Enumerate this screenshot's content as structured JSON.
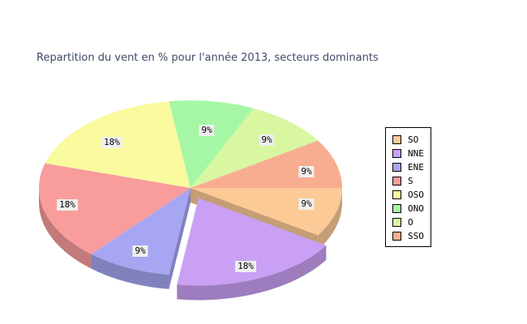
{
  "title": {
    "text": "Repartition du vent en % pour l'année 2013, secteurs dominants",
    "color": "#3E4A68"
  },
  "chart_data": {
    "type": "pie",
    "style": "3d-exploded",
    "title": "Repartition du vent en % pour l'année 2013, secteurs dominants",
    "unit": "%",
    "start_angle_deg": 0,
    "direction": "clockwise",
    "legend_position": "right",
    "label_background": "#EFEFEF",
    "slices": [
      {
        "name": "SO",
        "value": 9,
        "label": "9%",
        "color": "#FCCA96",
        "exploded": false
      },
      {
        "name": "NNE",
        "value": 18,
        "label": "18%",
        "color": "#C9A0F4",
        "exploded": true
      },
      {
        "name": "ENE",
        "value": 9,
        "label": "9%",
        "color": "#A6A6F2",
        "exploded": false
      },
      {
        "name": "S",
        "value": 18,
        "label": "18%",
        "color": "#F99C9C",
        "exploded": false
      },
      {
        "name": "OSO",
        "value": 18,
        "label": "18%",
        "color": "#FAFA9E",
        "exploded": false
      },
      {
        "name": "ONO",
        "value": 9,
        "label": "9%",
        "color": "#A5F7A5",
        "exploded": false
      },
      {
        "name": "O",
        "value": 9,
        "label": "9%",
        "color": "#D8F7A0",
        "exploded": false
      },
      {
        "name": "SSO",
        "value": 9,
        "label": "9%",
        "color": "#F9AD90",
        "exploded": false
      }
    ]
  }
}
